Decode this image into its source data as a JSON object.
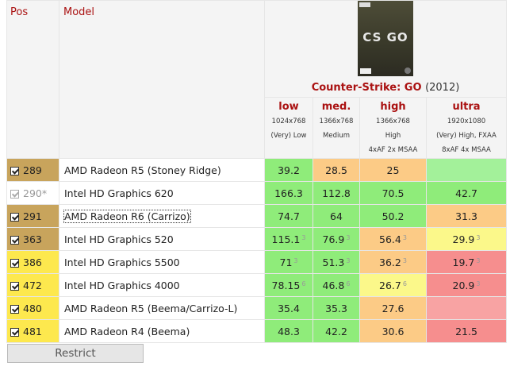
{
  "header": {
    "pos_label": "Pos",
    "model_label": "Model",
    "game_title": "Counter-Strike: GO",
    "game_year": "(2012)",
    "cover_logo": "CS GO"
  },
  "settings": [
    {
      "name": "low",
      "res": "1024x768",
      "quality": "(Very) Low",
      "extra": ""
    },
    {
      "name": "med.",
      "res": "1366x768",
      "quality": "Medium",
      "extra": ""
    },
    {
      "name": "high",
      "res": "1366x768",
      "quality": "High",
      "extra": "4xAF 2x MSAA"
    },
    {
      "name": "ultra",
      "res": "1920x1080",
      "quality": "(Very) High, FXAA",
      "extra": "8xAF 4x MSAA"
    }
  ],
  "rows": [
    {
      "pos": "289",
      "model": "AMD Radeon R5 (Stoney Ridge)",
      "checked": true,
      "dim": false,
      "pos_bg": "#c8a45c",
      "cells": [
        {
          "v": "39.2",
          "s": "",
          "bg": "#8fec7a"
        },
        {
          "v": "28.5",
          "s": "",
          "bg": "#fccb86"
        },
        {
          "v": "25",
          "s": "",
          "bg": "#fccb86"
        },
        {
          "v": "",
          "s": "",
          "bg": "#a3f19a"
        }
      ]
    },
    {
      "pos": "290*",
      "model": "Intel HD Graphics 620",
      "checked": true,
      "dim": true,
      "pos_bg": "#ffffff",
      "cells": [
        {
          "v": "166.3",
          "s": "",
          "bg": "#8fec7a"
        },
        {
          "v": "112.8",
          "s": "",
          "bg": "#8fec7a"
        },
        {
          "v": "70.5",
          "s": "",
          "bg": "#8fec7a"
        },
        {
          "v": "42.7",
          "s": "",
          "bg": "#8fec7a"
        }
      ]
    },
    {
      "pos": "291",
      "model": "AMD Radeon R6 (Carrizo)",
      "checked": true,
      "dim": false,
      "pos_bg": "#c8a45c",
      "cells": [
        {
          "v": "74.7",
          "s": "",
          "bg": "#8fec7a"
        },
        {
          "v": "64",
          "s": "",
          "bg": "#8fec7a"
        },
        {
          "v": "50.2",
          "s": "",
          "bg": "#8fec7a"
        },
        {
          "v": "31.3",
          "s": "",
          "bg": "#fccb86"
        }
      ]
    },
    {
      "pos": "363",
      "model": "Intel HD Graphics 520",
      "checked": true,
      "dim": false,
      "pos_bg": "#c8a45c",
      "cells": [
        {
          "v": "115.1",
          "s": "3",
          "bg": "#8fec7a"
        },
        {
          "v": "76.9",
          "s": "3",
          "bg": "#8fec7a"
        },
        {
          "v": "56.4",
          "s": "3",
          "bg": "#fccb86"
        },
        {
          "v": "29.9",
          "s": "3",
          "bg": "#fbf88a"
        }
      ]
    },
    {
      "pos": "386",
      "model": "Intel HD Graphics 5500",
      "checked": true,
      "dim": false,
      "pos_bg": "#fde84e",
      "cells": [
        {
          "v": "71",
          "s": "3",
          "bg": "#8fec7a"
        },
        {
          "v": "51.3",
          "s": "3",
          "bg": "#8fec7a"
        },
        {
          "v": "36.2",
          "s": "3",
          "bg": "#fccb86"
        },
        {
          "v": "19.7",
          "s": "3",
          "bg": "#f68e8e"
        }
      ]
    },
    {
      "pos": "472",
      "model": "Intel HD Graphics 4000",
      "checked": true,
      "dim": false,
      "pos_bg": "#fde84e",
      "cells": [
        {
          "v": "78.15",
          "s": "6",
          "bg": "#8fec7a"
        },
        {
          "v": "46.8",
          "s": "6",
          "bg": "#8fec7a"
        },
        {
          "v": "26.7",
          "s": "6",
          "bg": "#fbf88a"
        },
        {
          "v": "20.9",
          "s": "3",
          "bg": "#f68e8e"
        }
      ]
    },
    {
      "pos": "480",
      "model": "AMD Radeon R5 (Beema/Carrizo-L)",
      "checked": true,
      "dim": false,
      "pos_bg": "#fde84e",
      "cells": [
        {
          "v": "35.4",
          "s": "",
          "bg": "#8fec7a"
        },
        {
          "v": "35.3",
          "s": "",
          "bg": "#8fec7a"
        },
        {
          "v": "27.6",
          "s": "",
          "bg": "#fccb86"
        },
        {
          "v": "",
          "s": "",
          "bg": "#f8a3a3"
        }
      ]
    },
    {
      "pos": "481",
      "model": "AMD Radeon R4 (Beema)",
      "checked": true,
      "dim": false,
      "pos_bg": "#fde84e",
      "cells": [
        {
          "v": "48.3",
          "s": "",
          "bg": "#8fec7a"
        },
        {
          "v": "42.2",
          "s": "",
          "bg": "#8fec7a"
        },
        {
          "v": "30.6",
          "s": "",
          "bg": "#fccb86"
        },
        {
          "v": "21.5",
          "s": "",
          "bg": "#f68e8e"
        }
      ]
    }
  ],
  "restrict_button": "Restrict"
}
